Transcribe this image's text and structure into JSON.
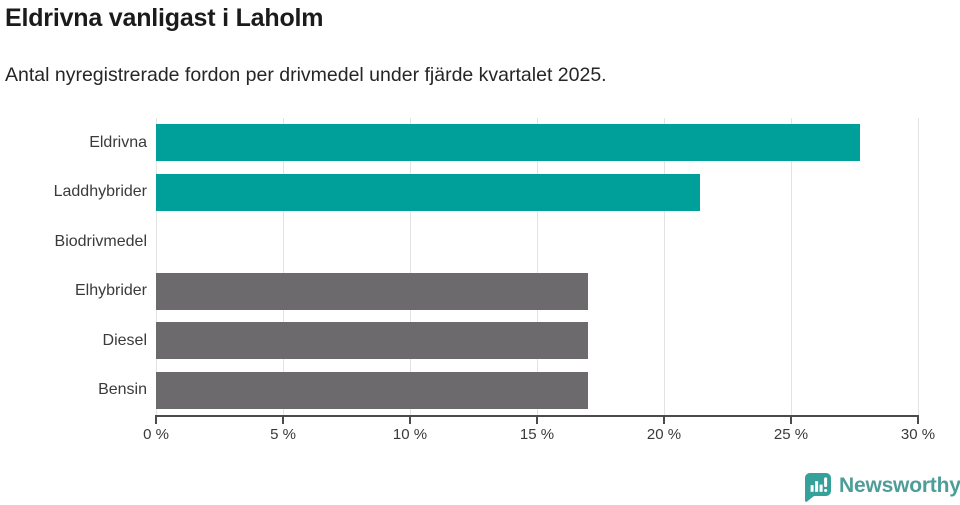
{
  "header": {
    "title": "Eldrivna vanligast i Laholm",
    "subtitle": "Antal nyregistrerade fordon per drivmedel under fjärde kvartalet 2025."
  },
  "chart_data": {
    "type": "bar",
    "orientation": "horizontal",
    "title": "Eldrivna vanligast i Laholm",
    "subtitle": "Antal nyregistrerade fordon per drivmedel under fjärde kvartalet 2025.",
    "categories": [
      "Eldrivna",
      "Laddhybrider",
      "Biodrivmedel",
      "Elhybrider",
      "Diesel",
      "Bensin"
    ],
    "values": [
      27.7,
      21.4,
      0,
      17,
      17,
      17
    ],
    "unit": "%",
    "bar_colors": [
      "#00a09a",
      "#00a09a",
      "#00a09a",
      "#6d6a6d",
      "#6d6a6d",
      "#6d6a6d"
    ],
    "xlim": [
      0,
      30
    ],
    "x_ticks": [
      0,
      5,
      10,
      15,
      20,
      25,
      30
    ],
    "x_tick_labels": [
      "0 %",
      "5 %",
      "10 %",
      "15 %",
      "20 %",
      "25 %",
      "30 %"
    ],
    "grid": "vertical",
    "legend": "none"
  },
  "footer": {
    "brand": "Newsworthy"
  },
  "colors": {
    "accent_teal": "#00a09a",
    "bar_gray": "#6d6a6d",
    "grid_line": "#e3e3e3",
    "axis_line": "#4b4b4b",
    "logo_teal": "#35a19a",
    "logo_text_teal": "#4e9d99"
  },
  "icons": {
    "logo": "newsworthy-speech-bubble-bar-chart-icon"
  }
}
